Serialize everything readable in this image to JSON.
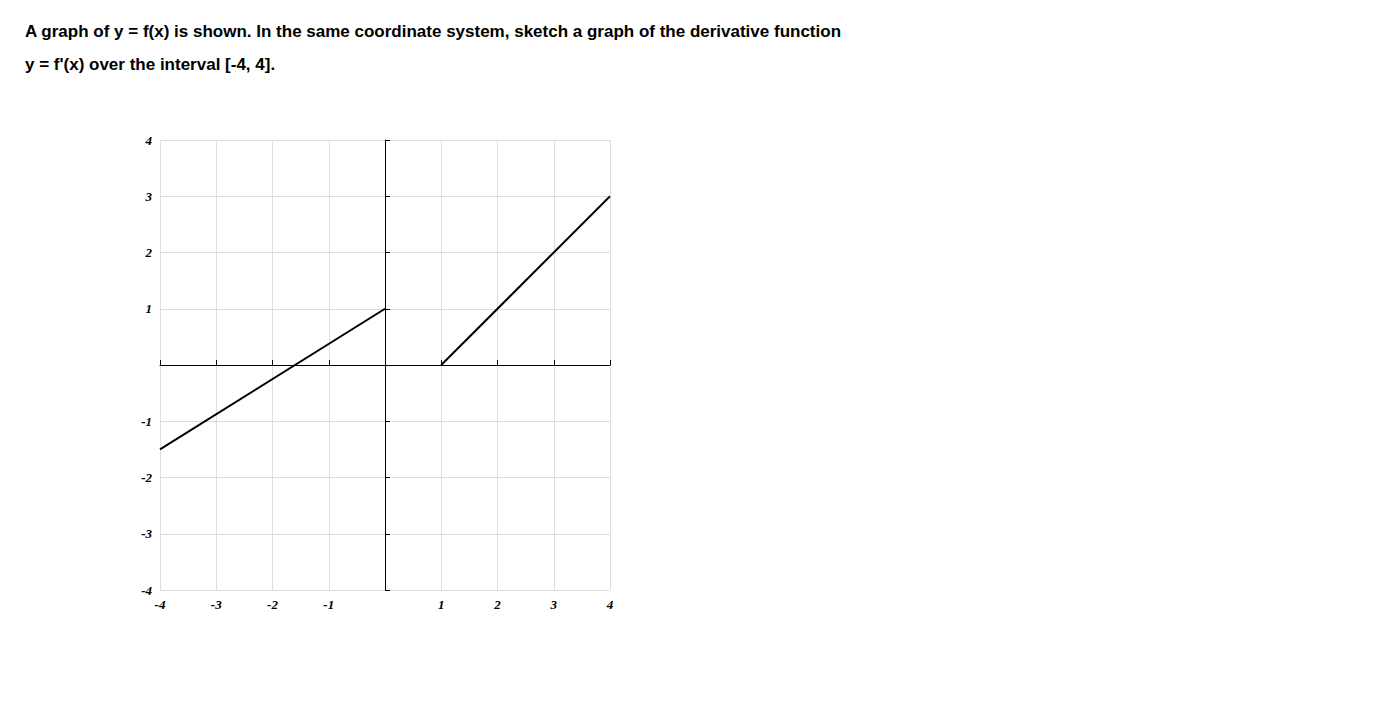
{
  "chart_data": {
    "type": "line",
    "title": "A graph of y = f(x) is shown. In the same coordinate system, sketch a graph of the derivative function",
    "subtitle": "y = f'(x) over the interval [-4, 4].",
    "series": [
      {
        "x": [
          -4,
          0
        ],
        "values": [
          -1.5,
          1
        ],
        "color": "#000000"
      },
      {
        "x": [
          1,
          4
        ],
        "values": [
          0,
          3
        ],
        "color": "#000000"
      }
    ],
    "xlim": [
      -4,
      4
    ],
    "ylim": [
      -4,
      4
    ],
    "xticks": [
      -4,
      -3,
      -2,
      -1,
      1,
      2,
      3,
      4
    ],
    "yticks": [
      -4,
      -3,
      -2,
      -1,
      1,
      2,
      3,
      4
    ],
    "grid": true
  }
}
